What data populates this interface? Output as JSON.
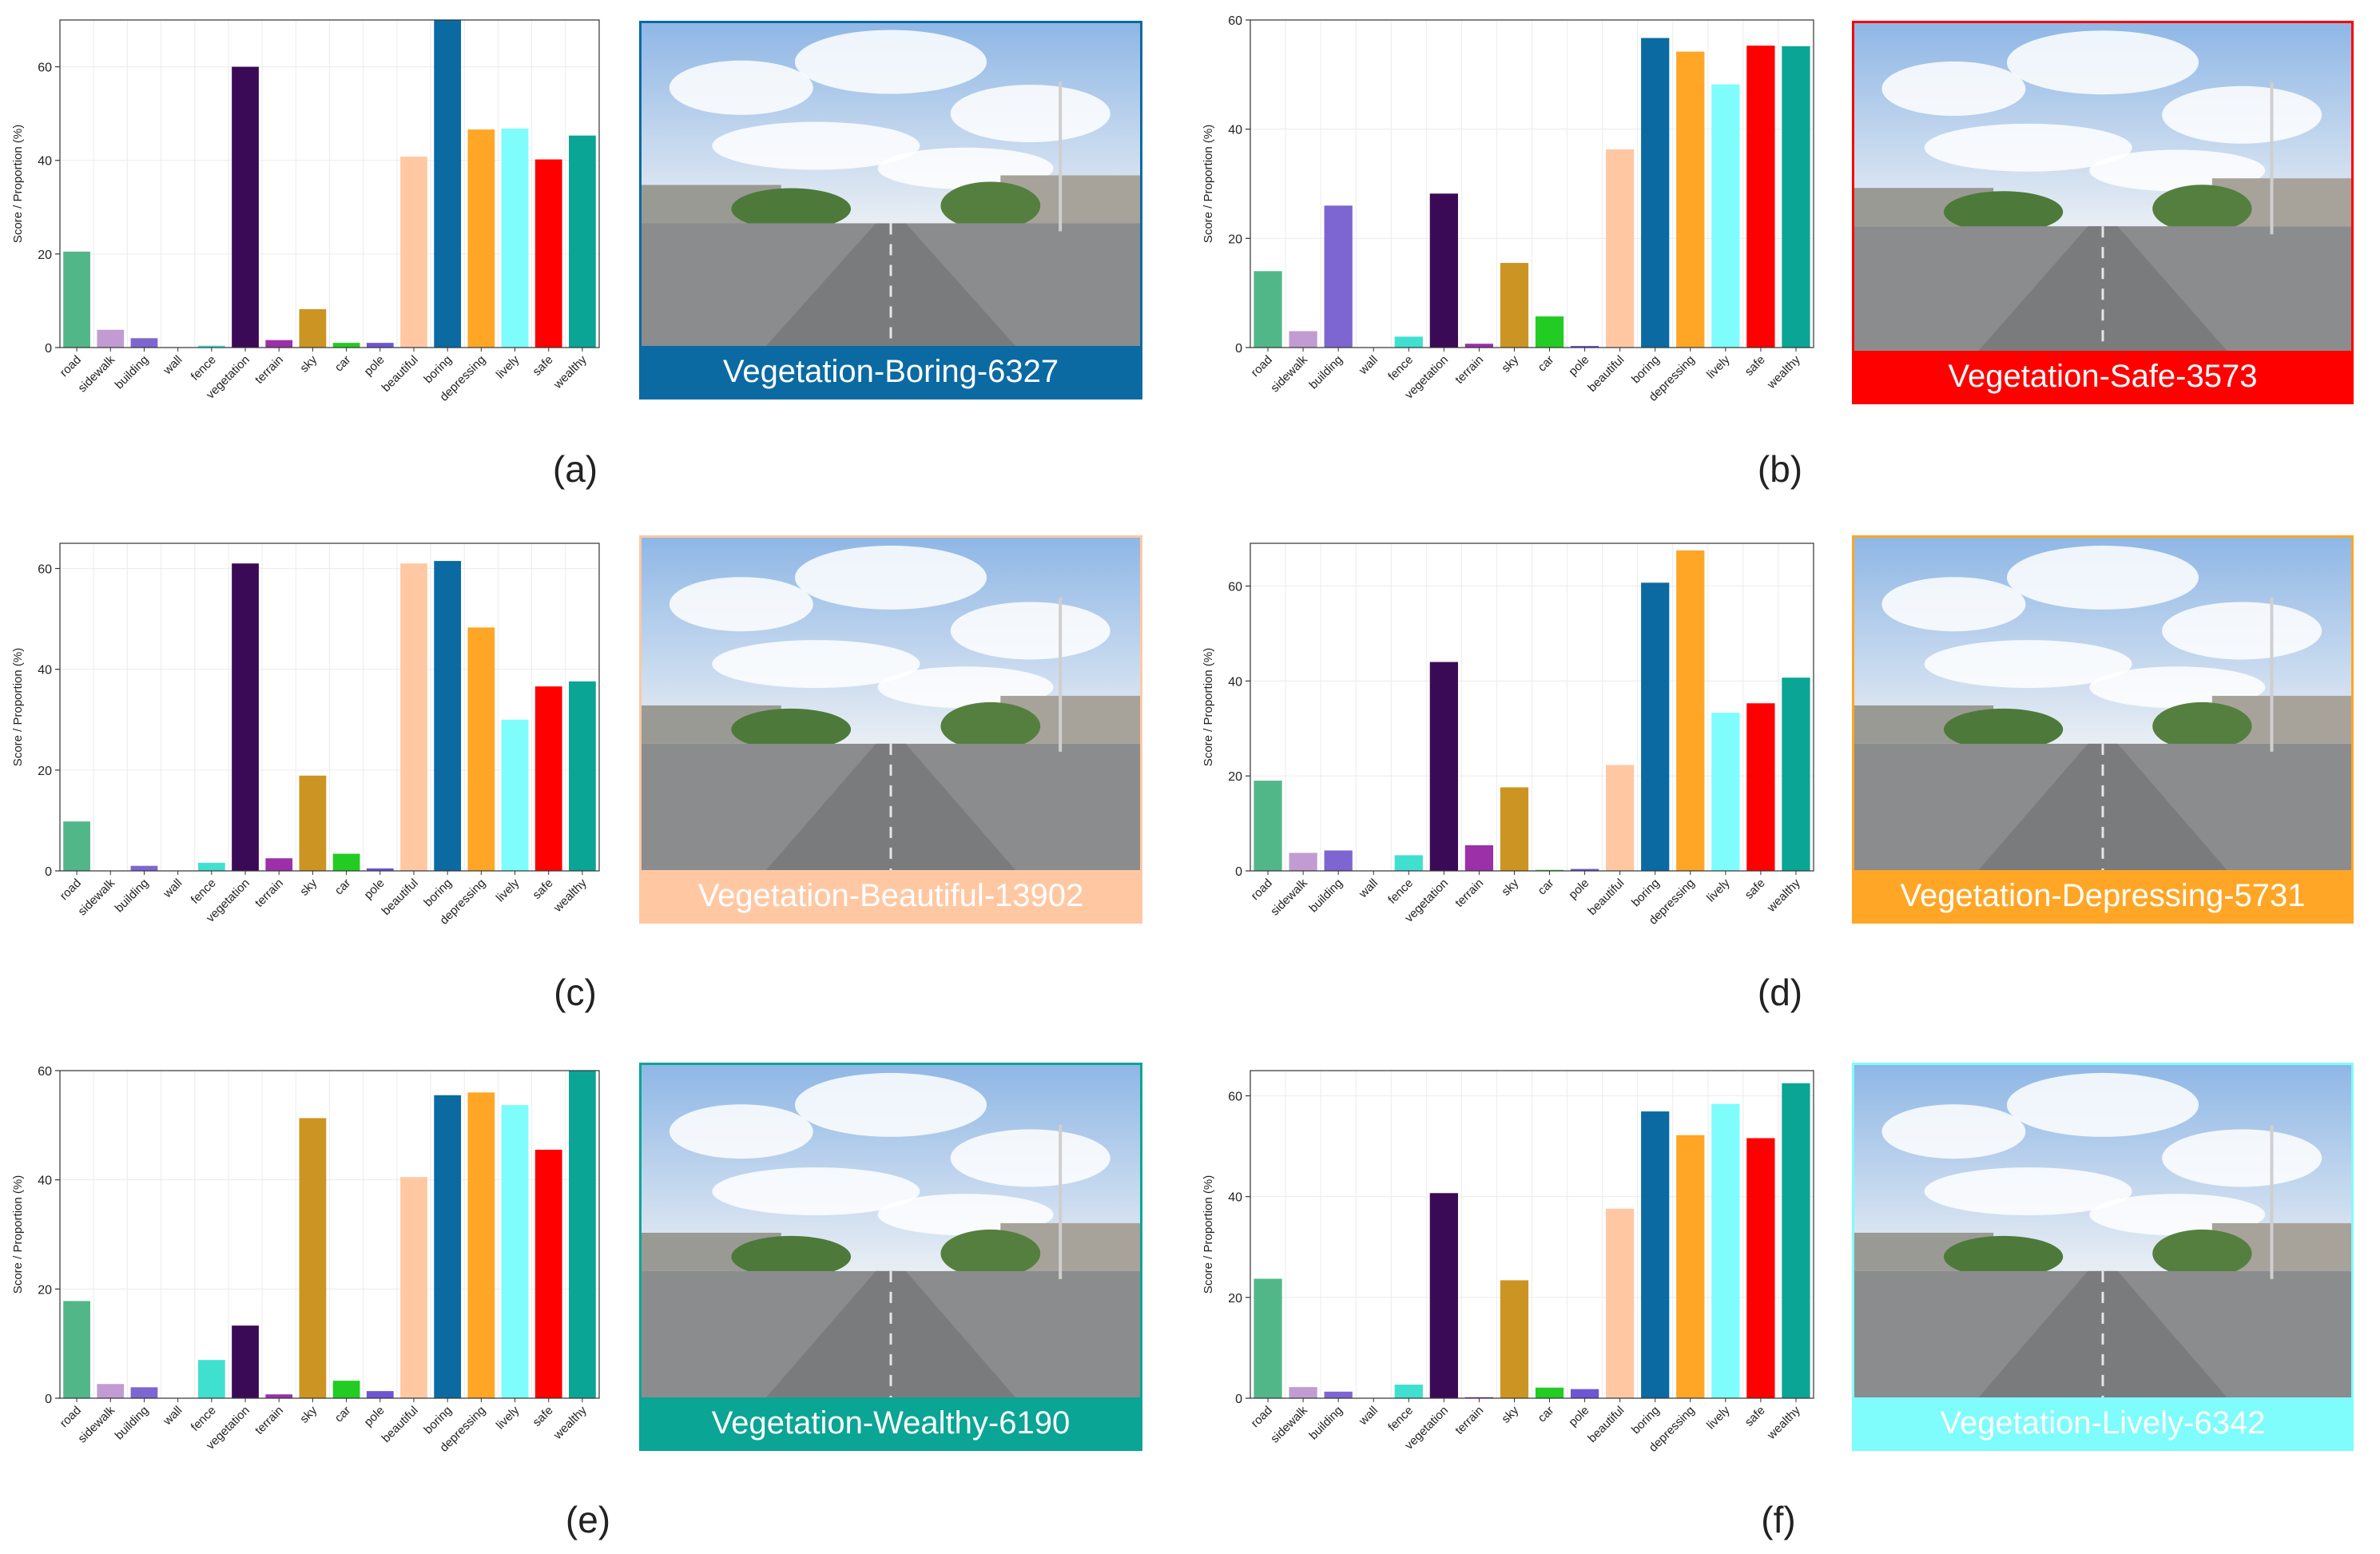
{
  "figure": {
    "ylabel": "Score / Proportion (%)",
    "categories": [
      "road",
      "sidewalk",
      "building",
      "wall",
      "fence",
      "vegetation",
      "terrain",
      "sky",
      "car",
      "pole",
      "beautiful",
      "boring",
      "depressing",
      "lively",
      "safe",
      "wealthy"
    ],
    "bar_colors": [
      "#52b788",
      "#c39bd3",
      "#7d66d1",
      "#bfbfbf",
      "#40e0d0",
      "#3b0a57",
      "#9b30a8",
      "#cc9422",
      "#22cc22",
      "#6d55d4",
      "#ffc8a3",
      "#0b6aa2",
      "#ffa626",
      "#7ffcfc",
      "#ff0000",
      "#0aa595"
    ]
  },
  "chart_data": [
    {
      "type": "bar",
      "panel_label": "(a)",
      "caption": "Vegetation-Boring-6327",
      "accent": "#0b6aa2",
      "caption_color": "#ffffff",
      "ylim": [
        0,
        70
      ],
      "yticks": [
        0,
        20,
        40,
        60
      ],
      "values": [
        20.5,
        3.8,
        2.0,
        0,
        0.4,
        60.0,
        1.6,
        8.2,
        1.0,
        1.0,
        40.8,
        70.0,
        46.6,
        46.8,
        40.2,
        45.3
      ]
    },
    {
      "type": "bar",
      "panel_label": "(b)",
      "caption": "Vegetation-Safe-3573",
      "accent": "#ff0000",
      "caption_color": "#ffffff",
      "ylim": [
        0,
        60
      ],
      "yticks": [
        0,
        20,
        40,
        60
      ],
      "values": [
        14.0,
        3.0,
        26.0,
        0,
        2.0,
        28.2,
        0.7,
        15.5,
        5.7,
        0.3,
        36.3,
        56.7,
        54.2,
        48.2,
        55.3,
        55.2
      ]
    },
    {
      "type": "bar",
      "panel_label": "(c)",
      "caption": "Vegetation-Beautiful-13902",
      "accent": "#ffc8a3",
      "caption_color": "#ffffff",
      "ylim": [
        0,
        65
      ],
      "yticks": [
        0,
        20,
        40,
        60
      ],
      "values": [
        9.8,
        0,
        1.0,
        0,
        1.6,
        61.0,
        2.5,
        18.9,
        3.4,
        0.5,
        61.0,
        61.5,
        48.3,
        30.0,
        36.6,
        37.6
      ]
    },
    {
      "type": "bar",
      "panel_label": "(d)",
      "caption": "Vegetation-Depressing-5731",
      "accent": "#ffa626",
      "caption_color": "#ffffff",
      "ylim": [
        0,
        69
      ],
      "yticks": [
        0,
        20,
        40,
        60
      ],
      "values": [
        19.0,
        3.8,
        4.3,
        0,
        3.3,
        44.0,
        5.4,
        17.6,
        0.2,
        0.4,
        22.3,
        60.7,
        67.5,
        33.3,
        35.3,
        40.7
      ]
    },
    {
      "type": "bar",
      "panel_label": "(e)",
      "caption": "Vegetation-Wealthy-6190",
      "accent": "#0aa595",
      "caption_color": "#ffffff",
      "ylim": [
        0,
        60
      ],
      "yticks": [
        0,
        20,
        40,
        60
      ],
      "values": [
        17.8,
        2.6,
        2.0,
        0,
        7.0,
        13.3,
        0.7,
        51.3,
        3.2,
        1.3,
        40.5,
        55.5,
        56.0,
        53.7,
        45.5,
        60.0
      ]
    },
    {
      "type": "bar",
      "panel_label": "(f)",
      "caption": "Vegetation-Lively-6342",
      "accent": "#7ffcfc",
      "caption_color": "#ffffff",
      "ylim": [
        0,
        65
      ],
      "yticks": [
        0,
        20,
        40,
        60
      ],
      "values": [
        23.7,
        2.2,
        1.3,
        0,
        2.7,
        40.7,
        0.2,
        23.4,
        2.1,
        1.8,
        37.6,
        56.9,
        52.2,
        58.4,
        51.6,
        62.5
      ]
    }
  ]
}
